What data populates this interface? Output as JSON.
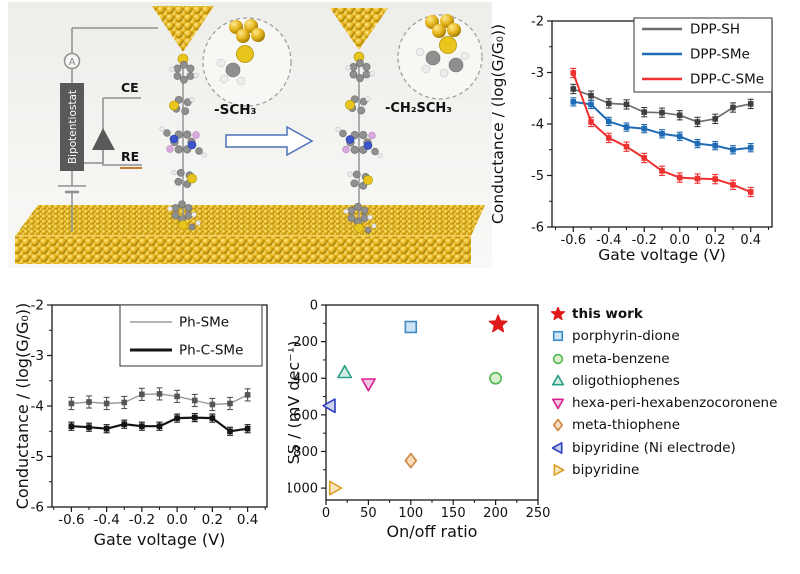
{
  "schematic": {
    "ammeter_label": "A",
    "bipotentiostat_label": "Bipotentiostat",
    "ce_label": "CE",
    "re_label": "RE",
    "left_anchor_label": "-SCH₃",
    "right_anchor_label": "-CH₂SCH₃",
    "colors": {
      "gold": "#e3b41c",
      "gold_dark": "#9c7200",
      "wire": "#8f8f8f",
      "box": "#595959",
      "re_underline": "#c87a30",
      "arrow_outline": "#4a72b8",
      "sulfur": "#e7c51c",
      "nitrogen": "#3c55cc",
      "oxygen_pink": "#d9a8df"
    }
  },
  "chart_data": [
    {
      "id": "dpp-gate-sweep",
      "type": "line",
      "title": "",
      "xlabel": "Gate voltage (V)",
      "ylabel": "Conductance / (log(G/G₀))",
      "xlim": [
        -0.72,
        0.52
      ],
      "ylim": [
        -6,
        -2
      ],
      "xticks": [
        -0.6,
        -0.4,
        -0.2,
        0.0,
        0.2,
        0.4
      ],
      "xtick_labels": [
        "-0.6",
        "-0.4",
        "-0.2",
        "0.0",
        "0.2",
        "0.4"
      ],
      "yticks": [
        -2,
        -3,
        -4,
        -5,
        -6
      ],
      "ytick_labels": [
        "-2",
        "-3",
        "-4",
        "-5",
        "-6"
      ],
      "grid": false,
      "legend_position": "top-right",
      "x": [
        -0.6,
        -0.5,
        -0.4,
        -0.3,
        -0.2,
        -0.1,
        0.0,
        0.1,
        0.2,
        0.3,
        0.4
      ],
      "series": [
        {
          "name": "DPP-SH",
          "color": "#6e6e6e",
          "marker_color": "#3f3f3f",
          "values": [
            -3.32,
            -3.45,
            -3.6,
            -3.62,
            -3.77,
            -3.78,
            -3.83,
            -3.96,
            -3.9,
            -3.68,
            -3.61
          ],
          "yerr": 0.09
        },
        {
          "name": "DPP-SMe",
          "color": "#1f6cb5",
          "marker_color": "#1f6cb5",
          "values": [
            -3.57,
            -3.62,
            -3.95,
            -4.06,
            -4.09,
            -4.19,
            -4.24,
            -4.38,
            -4.42,
            -4.5,
            -4.46
          ],
          "yerr": 0.08
        },
        {
          "name": "DPP-C-SMe",
          "color": "#ef3030",
          "marker_color": "#ef3030",
          "values": [
            -3.01,
            -3.96,
            -4.27,
            -4.44,
            -4.66,
            -4.91,
            -5.04,
            -5.06,
            -5.07,
            -5.18,
            -5.32
          ],
          "yerr": 0.09
        }
      ]
    },
    {
      "id": "ph-gate-sweep",
      "type": "line",
      "title": "",
      "xlabel": "Gate voltage (V)",
      "ylabel": "Conductance / (log(G/G₀))",
      "xlim": [
        -0.71,
        0.51
      ],
      "ylim": [
        -6,
        -2
      ],
      "xticks": [
        -0.6,
        -0.4,
        -0.2,
        0.0,
        0.2,
        0.4
      ],
      "xtick_labels": [
        "-0.6",
        "-0.4",
        "-0.2",
        "0.0",
        "0.2",
        "0.4"
      ],
      "yticks": [
        -2,
        -3,
        -4,
        -5,
        -6
      ],
      "ytick_labels": [
        "-2",
        "-3",
        "-4",
        "-5",
        "-6"
      ],
      "grid": false,
      "legend_position": "top-center",
      "x": [
        -0.6,
        -0.5,
        -0.4,
        -0.3,
        -0.2,
        -0.1,
        0.0,
        0.1,
        0.2,
        0.3,
        0.4
      ],
      "series": [
        {
          "name": "Ph-SMe",
          "color": "#9a9a9a",
          "marker_color": "#555555",
          "values": [
            -3.95,
            -3.92,
            -3.95,
            -3.93,
            -3.77,
            -3.76,
            -3.81,
            -3.89,
            -3.97,
            -3.95,
            -3.78
          ],
          "yerr": 0.12
        },
        {
          "name": "Ph-C-SMe",
          "color": "#141414",
          "marker_color": "#141414",
          "values": [
            -4.4,
            -4.42,
            -4.45,
            -4.36,
            -4.4,
            -4.4,
            -4.24,
            -4.23,
            -4.24,
            -4.5,
            -4.45
          ],
          "yerr": 0.08
        }
      ]
    },
    {
      "id": "ss-vs-onoff",
      "type": "scatter",
      "title": "",
      "xlabel": "On/off ratio",
      "ylabel": "SS / (mV dec⁻¹)",
      "xlim": [
        0,
        250
      ],
      "ylim": [
        0,
        1065
      ],
      "y_inverted": true,
      "xticks": [
        0,
        50,
        100,
        150,
        200,
        250
      ],
      "xtick_labels": [
        "0",
        "50",
        "100",
        "150",
        "200",
        "250"
      ],
      "yticks": [
        0,
        200,
        400,
        600,
        800,
        1000
      ],
      "ytick_labels": [
        "0",
        "200",
        "400",
        "600",
        "800",
        "1000"
      ],
      "grid": false,
      "legend_position": "right-outside",
      "points": [
        {
          "label": "this work",
          "x": 203,
          "y": 105,
          "marker": "star",
          "color": "#e01a1a",
          "fill": "#e01a1a",
          "bold": true
        },
        {
          "label": "porphyrin-dione",
          "x": 100,
          "y": 120,
          "marker": "square",
          "color": "#3d8bc4",
          "fill": "#cde2f2"
        },
        {
          "label": "meta-benzene",
          "x": 200,
          "y": 400,
          "marker": "circle",
          "color": "#52b84f",
          "fill": "#d8f0cf"
        },
        {
          "label": "oligothiophenes",
          "x": 22,
          "y": 370,
          "marker": "triangle-up",
          "color": "#2aa187",
          "fill": "#d2ece5"
        },
        {
          "label": "hexa-peri-hexabenzocoronene",
          "x": 50,
          "y": 430,
          "marker": "triangle-down",
          "color": "#d6218f",
          "fill": "#f4c6e0"
        },
        {
          "label": "meta-thiophene",
          "x": 100,
          "y": 850,
          "marker": "diamond",
          "color": "#ce8540",
          "fill": "#f6dcbc"
        },
        {
          "label": "bipyridine (Ni electrode)",
          "x": 5,
          "y": 550,
          "marker": "triangle-left",
          "color": "#2d3fc0",
          "fill": "#cdd3ef"
        },
        {
          "label": "bipyridine",
          "x": 10,
          "y": 1000,
          "marker": "triangle-right",
          "color": "#dc9f28",
          "fill": "#f6e7bd"
        }
      ]
    }
  ]
}
